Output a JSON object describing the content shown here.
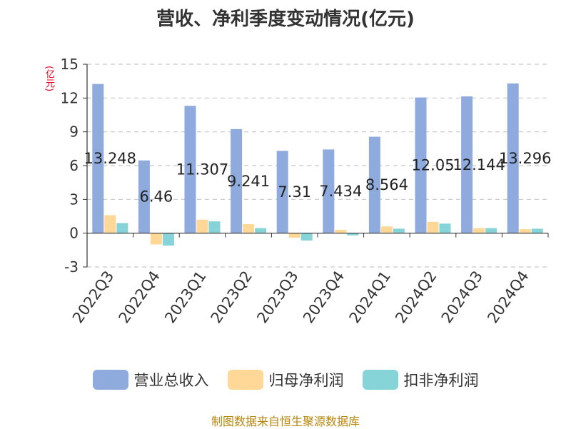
{
  "title": "营收、净利季度变动情况(亿元)",
  "unit_label": "(亿元)",
  "source": "制图数据来自恒生聚源数据库",
  "chart_data": {
    "type": "bar",
    "categories": [
      "2022Q3",
      "2022Q4",
      "2023Q1",
      "2023Q2",
      "2023Q3",
      "2023Q4",
      "2024Q1",
      "2024Q2",
      "2024Q3",
      "2024Q4"
    ],
    "series": [
      {
        "name": "营业总收入",
        "color": "#8faadc",
        "values": [
          13.248,
          6.46,
          11.307,
          9.241,
          7.31,
          7.434,
          8.564,
          12.05,
          12.144,
          13.296
        ],
        "labels": [
          "13.248",
          "6.46",
          "11.307",
          "9.241",
          "7.31",
          "7.434",
          "8.564",
          "12.05",
          "12.144",
          "13.296"
        ]
      },
      {
        "name": "归母净利润",
        "color": "#ffd797",
        "values": [
          1.6,
          -1.0,
          1.2,
          0.8,
          -0.4,
          0.3,
          0.6,
          1.0,
          0.45,
          0.35
        ]
      },
      {
        "name": "扣非净利润",
        "color": "#86d4d8",
        "values": [
          0.9,
          -1.1,
          1.05,
          0.45,
          -0.65,
          -0.2,
          0.4,
          0.85,
          0.45,
          0.4
        ]
      }
    ],
    "ylim": [
      -3,
      15
    ],
    "yticks": [
      -3,
      0,
      3,
      6,
      9,
      12,
      15
    ],
    "grid": true,
    "legend_position": "bottom"
  }
}
